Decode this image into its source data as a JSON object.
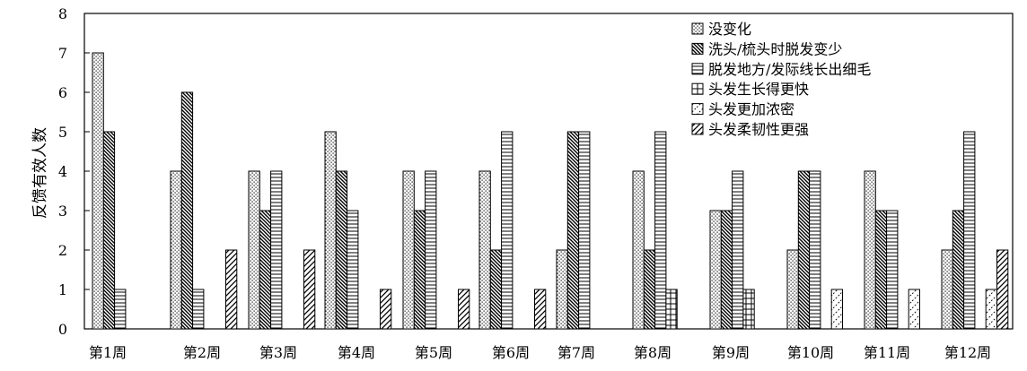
{
  "chart_data": {
    "type": "bar",
    "title": "",
    "xlabel": "",
    "ylabel": "反馈有效人数",
    "ylim": [
      0,
      8
    ],
    "yticks": [
      0,
      1,
      2,
      3,
      4,
      5,
      6,
      7,
      8
    ],
    "grid": false,
    "legend_position": "top-right",
    "categories": [
      "第1周",
      "第2周",
      "第3周",
      "第4周",
      "第5周",
      "第6周",
      "第7周",
      "第8周",
      "第9周",
      "第10周",
      "第11周",
      "第12周"
    ],
    "series": [
      {
        "name": "没变化",
        "pattern": "dots",
        "values": [
          7,
          4,
          4,
          5,
          4,
          4,
          2,
          4,
          3,
          2,
          4,
          2
        ]
      },
      {
        "name": "洗头/梳头时脱发变少",
        "pattern": "diagonal-dense",
        "values": [
          5,
          6,
          3,
          4,
          3,
          2,
          5,
          2,
          3,
          4,
          3,
          3
        ]
      },
      {
        "name": "脱发地方/发际线长出细毛",
        "pattern": "horizontal-lines",
        "values": [
          1,
          1,
          4,
          3,
          4,
          5,
          5,
          5,
          4,
          4,
          3,
          5
        ]
      },
      {
        "name": "头发生长得更快",
        "pattern": "grid",
        "values": [
          0,
          0,
          0,
          0,
          0,
          0,
          0,
          1,
          1,
          0,
          0,
          0
        ]
      },
      {
        "name": "头发更加浓密",
        "pattern": "zigzag",
        "values": [
          0,
          0,
          0,
          0,
          0,
          0,
          0,
          0,
          0,
          1,
          1,
          1
        ]
      },
      {
        "name": "头发柔韧性更强",
        "pattern": "diagonal-wide",
        "values": [
          0,
          2,
          2,
          1,
          1,
          1,
          0,
          0,
          0,
          0,
          0,
          2
        ]
      }
    ]
  }
}
